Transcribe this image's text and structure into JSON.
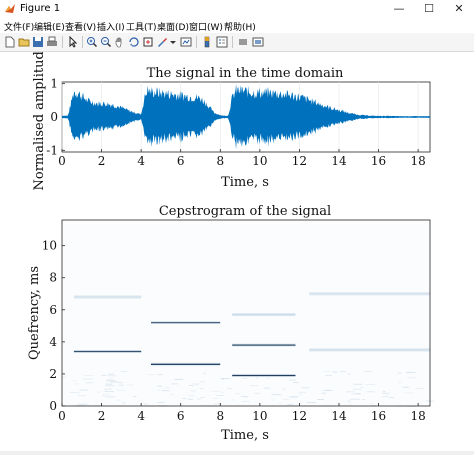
{
  "window": {
    "title": "Figure 1",
    "minimize_glyph": "—",
    "maximize_glyph": "☐",
    "close_glyph": "✕"
  },
  "menu": [
    "文件(F)",
    "编辑(E)",
    "查看(V)",
    "插入(I)",
    "工具(T)",
    "桌面(D)",
    "窗口(W)",
    "帮助(H)"
  ],
  "toolbar_icons": [
    "new-figure-icon",
    "open-file-icon",
    "save-icon",
    "print-icon",
    "pointer-icon",
    "zoom-in-icon",
    "zoom-out-icon",
    "pan-icon",
    "rotate-3d-icon",
    "data-cursor-icon",
    "brush-icon",
    "dropdown-arrow-icon",
    "link-plot-icon",
    "colorbar-icon",
    "legend-icon",
    "hide-plot-tools-icon",
    "show-plot-tools-icon"
  ],
  "chart_data": [
    {
      "type": "line",
      "title": "The signal in the time domain",
      "xlabel": "Time, s",
      "ylabel": "Normalised amplitude",
      "xlim": [
        0,
        18.6
      ],
      "ylim": [
        -1.05,
        1.05
      ],
      "x_ticks": [
        "0",
        "2",
        "4",
        "6",
        "8",
        "10",
        "12",
        "14",
        "16",
        "18"
      ],
      "y_ticks": [
        "-1",
        "0",
        "1"
      ],
      "series_color": "#0072bd",
      "envelope": {
        "t": [
          0,
          0.15,
          0.3,
          0.6,
          0.9,
          1.3,
          1.8,
          2.2,
          2.6,
          3.0,
          3.5,
          4.0,
          4.15,
          4.3,
          4.5,
          5.0,
          5.5,
          6.0,
          6.5,
          7.0,
          7.3,
          7.7,
          8.1,
          8.4,
          8.6,
          8.8,
          9.3,
          9.8,
          10.5,
          11.2,
          12.0,
          12.8,
          13.5,
          14.0,
          14.5,
          15.0,
          15.5,
          16.0,
          16.5,
          17.0,
          17.5,
          18.0,
          18.6
        ],
        "amp": [
          0.05,
          0.05,
          0.05,
          0.95,
          0.85,
          0.6,
          0.5,
          0.5,
          0.45,
          0.35,
          0.2,
          0.1,
          0.65,
          1.0,
          0.95,
          0.9,
          0.85,
          0.8,
          0.75,
          0.7,
          0.5,
          0.15,
          0.05,
          0.05,
          0.7,
          1.0,
          0.95,
          0.9,
          0.9,
          0.85,
          0.75,
          0.55,
          0.35,
          0.25,
          0.15,
          0.08,
          0.05,
          0.04,
          0.04,
          0.03,
          0.03,
          0.03,
          0.03
        ]
      }
    },
    {
      "type": "heatmap",
      "title": "Cepstrogram of the signal",
      "xlabel": "Time, s",
      "ylabel": "Quefrency, ms",
      "xlim": [
        0,
        18.6
      ],
      "ylim": [
        0,
        11.6
      ],
      "x_ticks": [
        "0",
        "2",
        "4",
        "6",
        "8",
        "10",
        "12",
        "14",
        "16",
        "18"
      ],
      "y_ticks": [
        "0",
        "2",
        "4",
        "6",
        "8",
        "10"
      ],
      "colormap": [
        "#ffffff",
        "#c7d9e8",
        "#0d2d4d"
      ],
      "bands": [
        {
          "t0": 0.6,
          "t1": 4.0,
          "q": 3.4,
          "intensity": 0.8
        },
        {
          "t0": 4.5,
          "t1": 8.0,
          "q": 2.6,
          "intensity": 0.95
        },
        {
          "t0": 4.5,
          "t1": 8.0,
          "q": 5.2,
          "intensity": 0.7
        },
        {
          "t0": 8.6,
          "t1": 11.8,
          "q": 1.9,
          "intensity": 0.9
        },
        {
          "t0": 8.6,
          "t1": 11.8,
          "q": 3.8,
          "intensity": 0.85
        },
        {
          "t0": 8.6,
          "t1": 11.8,
          "q": 5.7,
          "intensity": 0.6
        },
        {
          "t0": 12.5,
          "t1": 18.6,
          "q": 3.5,
          "intensity": 0.45
        },
        {
          "t0": 0.6,
          "t1": 4.0,
          "q": 6.8,
          "intensity": 0.25
        },
        {
          "t0": 12.5,
          "t1": 18.6,
          "q": 7.0,
          "intensity": 0.2
        }
      ]
    }
  ]
}
